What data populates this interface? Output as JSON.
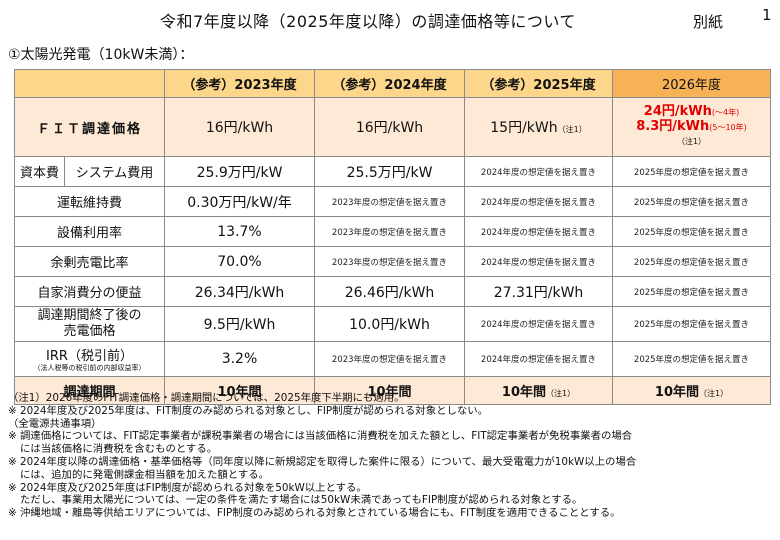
{
  "header": {
    "title": "令和7年度以降（2025年度以降）の調達価格等について",
    "annex": "別紙",
    "page_number": "1"
  },
  "section_title": "①太陽光発電（10kW未満）：",
  "table": {
    "columns": [
      "（参考）2023年度",
      "（参考）2024年度",
      "（参考）2025年度",
      "2026年度"
    ],
    "fit_label": "ＦＩＴ調達価格",
    "fit": [
      "16円/kWh",
      "16円/kWh",
      "15円/kWh",
      ""
    ],
    "fit_2025_note": "（注1）",
    "fit_2026_line1": "24円/kWh",
    "fit_2026_line1_sub": "(～4年)",
    "fit_2026_line2": "8.3円/kWh",
    "fit_2026_line2_sub": "(5～10年)",
    "fit_2026_note": "（注1）",
    "capital_label": "資本費",
    "system_cost_label": "システム費用",
    "system_cost": [
      "25.9万円/kW",
      "25.5万円/kW",
      "2024年度の想定値を据え置き",
      "2025年度の想定値を据え置き"
    ],
    "om_label": "運転維持費",
    "om": [
      "0.30万円/kW/年",
      "2023年度の想定値を据え置き",
      "2024年度の想定値を据え置き",
      "2025年度の想定値を据え置き"
    ],
    "capacity_label": "設備利用率",
    "capacity": [
      "13.7%",
      "2023年度の想定値を据え置き",
      "2024年度の想定値を据え置き",
      "2025年度の想定値を据え置き"
    ],
    "surplus_label": "余剰売電比率",
    "surplus": [
      "70.0%",
      "2023年度の想定値を据え置き",
      "2024年度の想定値を据え置き",
      "2025年度の想定値を据え置き"
    ],
    "self_label": "自家消費分の便益",
    "self": [
      "26.34円/kWh",
      "26.46円/kWh",
      "27.31円/kWh",
      "2025年度の想定値を据え置き"
    ],
    "postperiod_label1": "調達期間終了後の",
    "postperiod_label2": "売電価格",
    "postperiod": [
      "9.5円/kWh",
      "10.0円/kWh",
      "2024年度の想定値を据え置き",
      "2025年度の想定値を据え置き"
    ],
    "irr_label": "IRR（税引前）",
    "irr_sublabel": "（法人税等の税引前の内部収益率）",
    "irr": [
      "3.2%",
      "2023年度の想定値を据え置き",
      "2024年度の想定値を据え置き",
      "2025年度の想定値を据え置き"
    ],
    "period_label": "調達期間",
    "period": [
      "10年間",
      "10年間",
      "10年間",
      "10年間"
    ],
    "period_note": "（注1）"
  },
  "notes": [
    "（注1）2026年度のFIT調達価格・調達期間については、2025年度下半期にも適用。",
    "※ 2024年度及び2025年度は、FIT制度のみ認められる対象とし、FIP制度が認められる対象としない。",
    "（全電源共通事項）",
    "※ 調達価格については、FIT認定事業者が課税事業者の場合には当該価格に消費税を加えた額とし、FIT認定事業者が免税事業者の場合",
    "には当該価格に消費税を含むものとする。",
    "※ 2024年度以降の調達価格・基準価格等（同年度以降に新規認定を取得した案件に限る）について、最大受電電力が10kW以上の場合",
    "には、追加的に発電側課金相当額を加えた額とする。",
    "※ 2024年度及び2025年度はFIP制度が認められる対象を50kW以上とする。",
    "ただし、事業用太陽光については、一定の条件を満たす場合には50kW未満であってもFIP制度が認められる対象とする。",
    "※ 沖縄地域・離島等供給エリアについては、FIP制度のみ認められる対象とされている場合にも、FIT制度を適用できることとする。"
  ]
}
